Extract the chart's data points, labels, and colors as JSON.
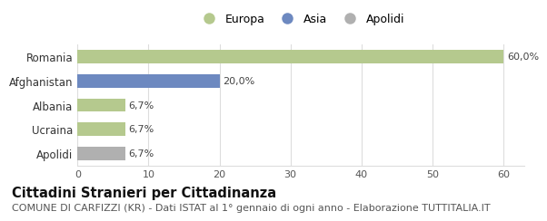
{
  "categories": [
    "Romania",
    "Afghanistan",
    "Albania",
    "Ucraina",
    "Apolidi"
  ],
  "values": [
    60.0,
    20.0,
    6.7,
    6.7,
    6.7
  ],
  "labels": [
    "60,0%",
    "20,0%",
    "6,7%",
    "6,7%",
    "6,7%"
  ],
  "colors": [
    "#b5c98e",
    "#6d89c0",
    "#b5c98e",
    "#b5c98e",
    "#b0b0b0"
  ],
  "legend_labels": [
    "Europa",
    "Asia",
    "Apolidi"
  ],
  "legend_colors": [
    "#b5c98e",
    "#6d89c0",
    "#b0b0b0"
  ],
  "xlim": [
    0,
    63
  ],
  "xticks": [
    0,
    10,
    20,
    30,
    40,
    50,
    60
  ],
  "title": "Cittadini Stranieri per Cittadinanza",
  "subtitle": "COMUNE DI CARFIZZI (KR) - Dati ISTAT al 1° gennaio di ogni anno - Elaborazione TUTTITALIA.IT",
  "title_fontsize": 10.5,
  "subtitle_fontsize": 8,
  "bg_color": "#ffffff",
  "grid_color": "#dddddd"
}
